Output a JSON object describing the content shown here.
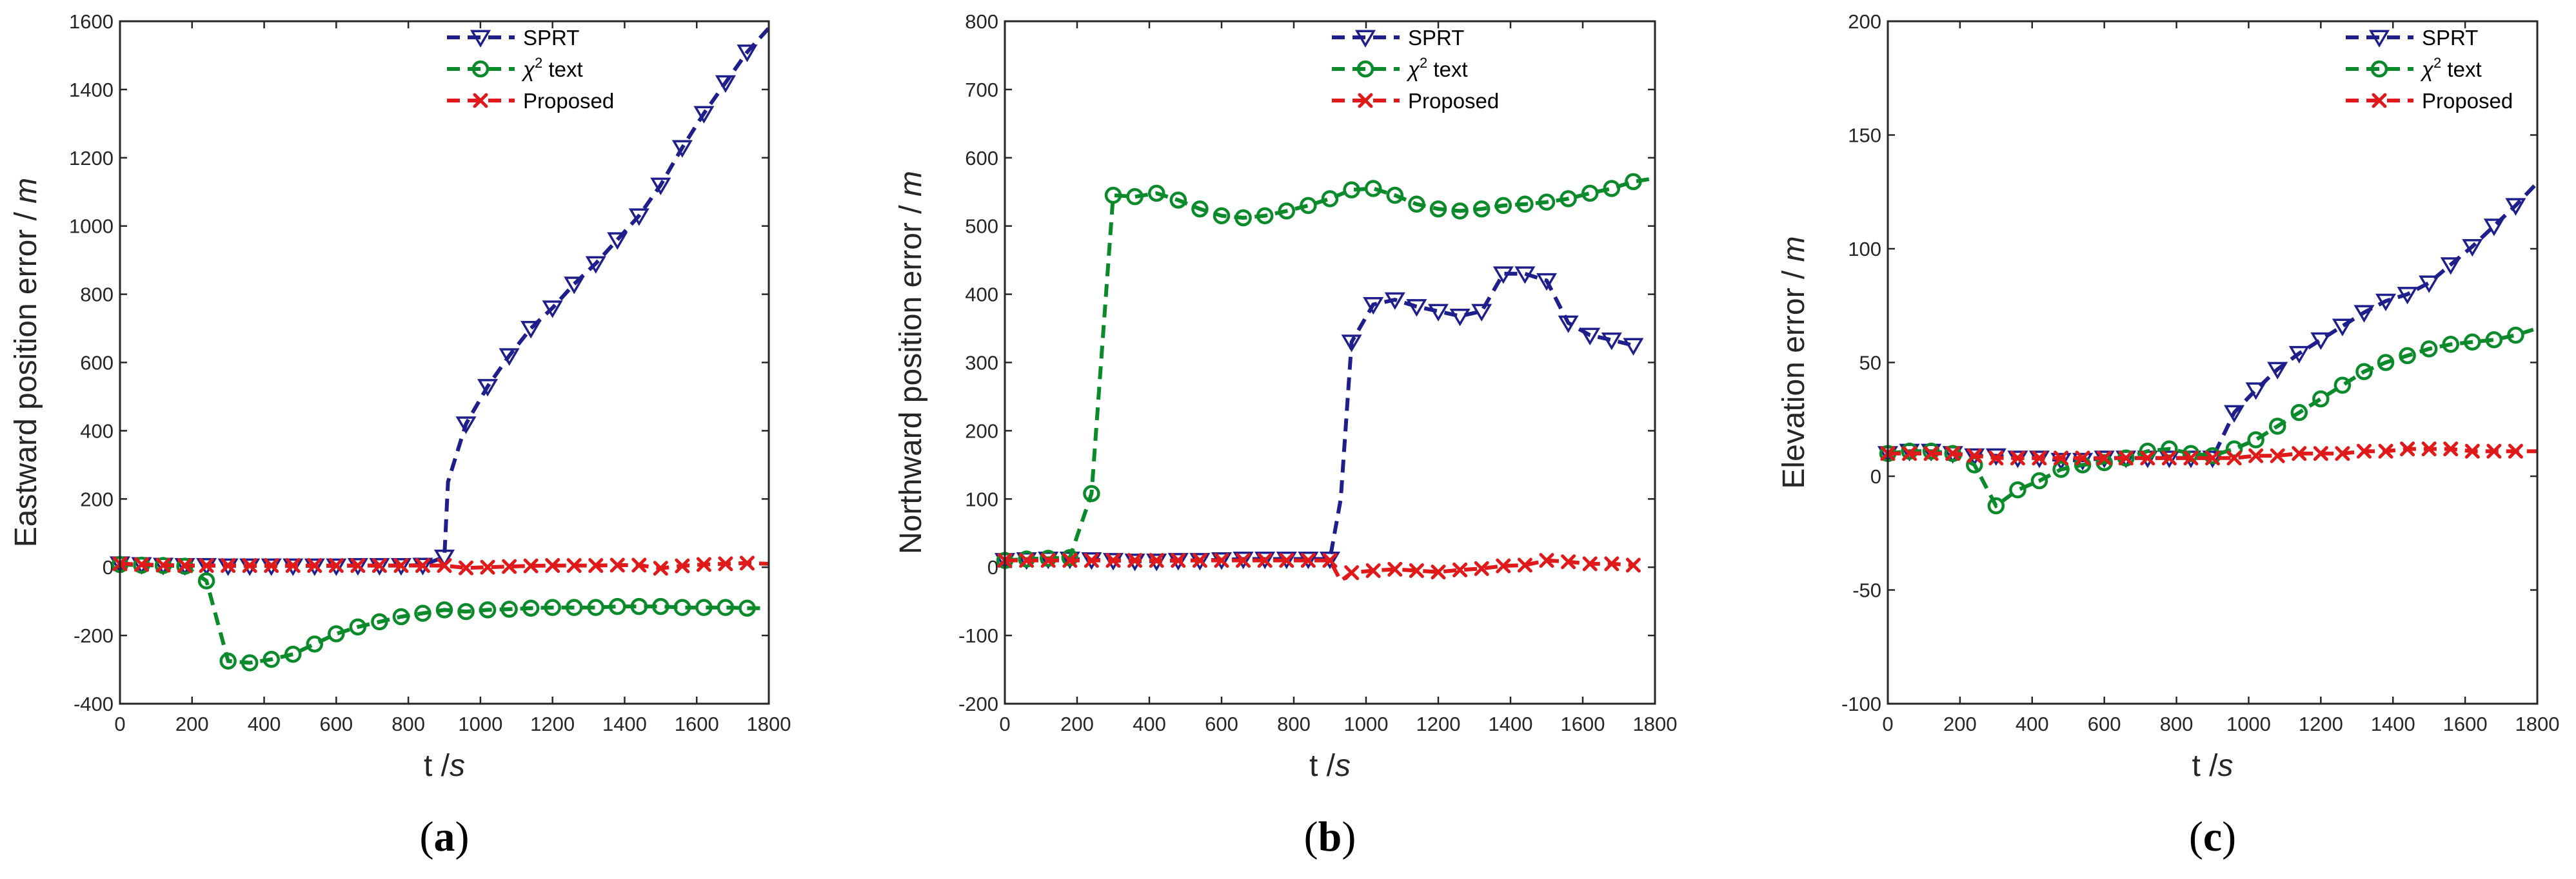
{
  "colors": {
    "sprt": "#1f1f8c",
    "chi2": "#0a8a2a",
    "proposed": "#e01a1a",
    "axis": "#262626"
  },
  "legend_entries": {
    "sprt": "SPRT",
    "chi2_symbol": "χ",
    "chi2_sup": "2",
    "chi2_rest": " text",
    "proposed": "Proposed"
  },
  "chart_data": [
    {
      "type": "line",
      "panel_label": "a",
      "xlabel_var": "t /",
      "xlabel_unit": "s",
      "ylabel_text": "Eastward position error /",
      "ylabel_unit": "m",
      "xlim": [
        0,
        1800
      ],
      "ylim": [
        -400,
        1600
      ],
      "xticks": [
        0,
        200,
        400,
        600,
        800,
        1000,
        1200,
        1400,
        1600,
        1800
      ],
      "yticks": [
        -400,
        -200,
        0,
        200,
        400,
        600,
        800,
        1000,
        1200,
        1400,
        1600
      ],
      "series": [
        {
          "key": "sprt",
          "name": "SPRT",
          "x": [
            0,
            60,
            120,
            180,
            240,
            300,
            360,
            420,
            480,
            540,
            600,
            660,
            720,
            780,
            840,
            900,
            910,
            960,
            1020,
            1080,
            1140,
            1200,
            1260,
            1320,
            1380,
            1440,
            1500,
            1560,
            1620,
            1680,
            1740,
            1800
          ],
          "y": [
            10,
            8,
            6,
            5,
            5,
            4,
            4,
            4,
            4,
            4,
            4,
            5,
            5,
            5,
            6,
            30,
            250,
            420,
            530,
            620,
            700,
            760,
            830,
            890,
            960,
            1030,
            1120,
            1230,
            1330,
            1420,
            1510,
            1580
          ],
          "marker_idx": [
            0,
            1,
            2,
            3,
            4,
            5,
            6,
            7,
            8,
            9,
            10,
            11,
            12,
            13,
            14,
            15,
            17,
            18,
            19,
            20,
            21,
            22,
            23,
            24,
            25,
            26,
            27,
            28,
            29,
            30
          ]
        },
        {
          "key": "chi2",
          "name": "χ2 text",
          "x": [
            0,
            60,
            120,
            180,
            240,
            300,
            360,
            420,
            480,
            540,
            600,
            660,
            720,
            780,
            840,
            900,
            960,
            1020,
            1080,
            1140,
            1200,
            1260,
            1320,
            1380,
            1440,
            1500,
            1560,
            1620,
            1680,
            1740,
            1800
          ],
          "y": [
            8,
            6,
            5,
            3,
            -40,
            -275,
            -280,
            -270,
            -255,
            -225,
            -195,
            -175,
            -160,
            -145,
            -135,
            -125,
            -130,
            -125,
            -123,
            -120,
            -118,
            -118,
            -118,
            -115,
            -115,
            -115,
            -118,
            -118,
            -118,
            -120,
            -120
          ],
          "marker_idx": [
            0,
            1,
            2,
            3,
            4,
            5,
            6,
            7,
            8,
            9,
            10,
            11,
            12,
            13,
            14,
            15,
            16,
            17,
            18,
            19,
            20,
            21,
            22,
            23,
            24,
            25,
            26,
            27,
            28,
            29
          ]
        },
        {
          "key": "proposed",
          "name": "Proposed",
          "x": [
            0,
            60,
            120,
            180,
            240,
            300,
            360,
            420,
            480,
            540,
            600,
            660,
            720,
            780,
            840,
            900,
            960,
            1020,
            1080,
            1140,
            1200,
            1260,
            1320,
            1380,
            1440,
            1500,
            1560,
            1620,
            1680,
            1740,
            1800
          ],
          "y": [
            10,
            8,
            6,
            5,
            5,
            5,
            5,
            5,
            5,
            5,
            5,
            5,
            5,
            5,
            5,
            5,
            -2,
            0,
            2,
            4,
            5,
            5,
            5,
            6,
            6,
            -3,
            4,
            8,
            10,
            12,
            10
          ],
          "marker_idx": [
            0,
            1,
            2,
            3,
            4,
            5,
            6,
            7,
            8,
            9,
            10,
            11,
            12,
            13,
            14,
            15,
            16,
            17,
            18,
            19,
            20,
            21,
            22,
            23,
            24,
            25,
            26,
            27,
            28,
            29
          ]
        }
      ]
    },
    {
      "type": "line",
      "panel_label": "b",
      "xlabel_var": "t /",
      "xlabel_unit": "s",
      "ylabel_text": "Northward position error /",
      "ylabel_unit": "m",
      "xlim": [
        0,
        1800
      ],
      "ylim": [
        -200,
        800
      ],
      "xticks": [
        0,
        200,
        400,
        600,
        800,
        1000,
        1200,
        1400,
        1600,
        1800
      ],
      "yticks": [
        -200,
        -100,
        0,
        100,
        200,
        300,
        400,
        500,
        600,
        700,
        800
      ],
      "series": [
        {
          "key": "sprt",
          "name": "SPRT",
          "x": [
            0,
            60,
            120,
            180,
            240,
            300,
            360,
            420,
            480,
            540,
            600,
            660,
            720,
            780,
            840,
            900,
            930,
            960,
            1020,
            1080,
            1140,
            1200,
            1260,
            1320,
            1380,
            1440,
            1500,
            1560,
            1620,
            1680,
            1740
          ],
          "y": [
            10,
            11,
            12,
            12,
            11,
            10,
            9,
            9,
            10,
            10,
            11,
            12,
            12,
            12,
            12,
            12,
            100,
            330,
            385,
            392,
            382,
            375,
            368,
            375,
            430,
            430,
            420,
            358,
            340,
            333,
            325
          ],
          "marker_idx": [
            0,
            1,
            2,
            3,
            4,
            5,
            6,
            7,
            8,
            9,
            10,
            11,
            12,
            13,
            14,
            15,
            17,
            18,
            19,
            20,
            21,
            22,
            23,
            24,
            25,
            26,
            27,
            28,
            29,
            30
          ]
        },
        {
          "key": "chi2",
          "name": "χ2 text",
          "x": [
            0,
            60,
            120,
            180,
            240,
            300,
            360,
            420,
            480,
            540,
            600,
            660,
            720,
            780,
            840,
            900,
            960,
            1020,
            1080,
            1140,
            1200,
            1260,
            1320,
            1380,
            1440,
            1500,
            1560,
            1620,
            1680,
            1740,
            1800
          ],
          "y": [
            10,
            12,
            13,
            14,
            108,
            545,
            543,
            548,
            538,
            525,
            515,
            512,
            515,
            522,
            530,
            540,
            553,
            555,
            545,
            532,
            525,
            522,
            525,
            530,
            532,
            535,
            540,
            548,
            555,
            565,
            570
          ],
          "marker_idx": [
            0,
            1,
            2,
            3,
            4,
            5,
            6,
            7,
            8,
            9,
            10,
            11,
            12,
            13,
            14,
            15,
            16,
            17,
            18,
            19,
            20,
            21,
            22,
            23,
            24,
            25,
            26,
            27,
            28,
            29
          ]
        },
        {
          "key": "proposed",
          "name": "Proposed",
          "x": [
            0,
            60,
            120,
            180,
            240,
            300,
            360,
            420,
            480,
            540,
            600,
            660,
            720,
            780,
            840,
            900,
            930,
            960,
            1020,
            1080,
            1140,
            1200,
            1260,
            1320,
            1380,
            1440,
            1500,
            1560,
            1620,
            1680,
            1740
          ],
          "y": [
            10,
            10,
            10,
            10,
            10,
            10,
            10,
            10,
            10,
            10,
            10,
            10,
            10,
            10,
            10,
            10,
            -20,
            -8,
            -5,
            -3,
            -5,
            -7,
            -4,
            -2,
            2,
            3,
            10,
            8,
            5,
            5,
            3
          ],
          "marker_idx": [
            0,
            1,
            2,
            3,
            4,
            5,
            6,
            7,
            8,
            9,
            10,
            11,
            12,
            13,
            14,
            15,
            17,
            18,
            19,
            20,
            21,
            22,
            23,
            24,
            25,
            26,
            27,
            28,
            29,
            30
          ]
        }
      ]
    },
    {
      "type": "line",
      "panel_label": "c",
      "xlabel_var": "t /",
      "xlabel_unit": "s",
      "ylabel_text": "Elevation error /",
      "ylabel_unit": "m",
      "xlim": [
        0,
        1800
      ],
      "ylim": [
        -100,
        200
      ],
      "xticks": [
        0,
        200,
        400,
        600,
        800,
        1000,
        1200,
        1400,
        1600,
        1800
      ],
      "yticks": [
        -100,
        -50,
        0,
        50,
        100,
        150,
        200
      ],
      "series": [
        {
          "key": "sprt",
          "name": "SPRT",
          "x": [
            0,
            60,
            120,
            180,
            240,
            300,
            360,
            420,
            480,
            540,
            600,
            660,
            720,
            780,
            840,
            900,
            960,
            1020,
            1080,
            1140,
            1200,
            1260,
            1320,
            1380,
            1440,
            1500,
            1560,
            1620,
            1680,
            1740,
            1800
          ],
          "y": [
            10,
            11,
            11,
            10,
            9,
            9,
            8,
            8,
            7,
            7,
            8,
            8,
            8,
            8,
            8,
            8,
            28,
            38,
            47,
            54,
            60,
            66,
            72,
            77,
            80,
            85,
            93,
            101,
            110,
            119,
            129
          ],
          "marker_idx": [
            0,
            1,
            2,
            3,
            4,
            5,
            6,
            7,
            8,
            9,
            10,
            11,
            12,
            13,
            14,
            15,
            16,
            17,
            18,
            19,
            20,
            21,
            22,
            23,
            24,
            25,
            26,
            27,
            28,
            29
          ]
        },
        {
          "key": "chi2",
          "name": "χ2 text",
          "x": [
            0,
            60,
            120,
            180,
            240,
            300,
            360,
            420,
            480,
            540,
            600,
            660,
            720,
            780,
            840,
            900,
            960,
            1020,
            1080,
            1140,
            1200,
            1260,
            1320,
            1380,
            1440,
            1500,
            1560,
            1620,
            1680,
            1740,
            1800
          ],
          "y": [
            10,
            11,
            11,
            10,
            5,
            -13,
            -6,
            -2,
            3,
            5,
            6,
            8,
            11,
            12,
            10,
            9,
            12,
            16,
            22,
            28,
            34,
            40,
            46,
            50,
            53,
            56,
            58,
            59,
            60,
            62,
            65
          ],
          "marker_idx": [
            0,
            1,
            2,
            3,
            4,
            5,
            6,
            7,
            8,
            9,
            10,
            11,
            12,
            13,
            14,
            15,
            16,
            17,
            18,
            19,
            20,
            21,
            22,
            23,
            24,
            25,
            26,
            27,
            28,
            29
          ]
        },
        {
          "key": "proposed",
          "name": "Proposed",
          "x": [
            0,
            60,
            120,
            180,
            240,
            300,
            360,
            420,
            480,
            540,
            600,
            660,
            720,
            780,
            840,
            900,
            960,
            1020,
            1080,
            1140,
            1200,
            1260,
            1320,
            1380,
            1440,
            1500,
            1560,
            1620,
            1680,
            1740,
            1800
          ],
          "y": [
            10,
            10,
            10,
            10,
            9,
            8,
            8,
            8,
            8,
            8,
            8,
            8,
            8,
            8,
            8,
            8,
            8,
            9,
            9,
            10,
            10,
            10,
            11,
            11,
            12,
            12,
            12,
            11,
            11,
            11,
            11
          ],
          "marker_idx": [
            0,
            1,
            2,
            3,
            4,
            5,
            6,
            7,
            8,
            9,
            10,
            11,
            12,
            13,
            14,
            15,
            16,
            17,
            18,
            19,
            20,
            21,
            22,
            23,
            24,
            25,
            26,
            27,
            28,
            29
          ]
        }
      ]
    }
  ]
}
